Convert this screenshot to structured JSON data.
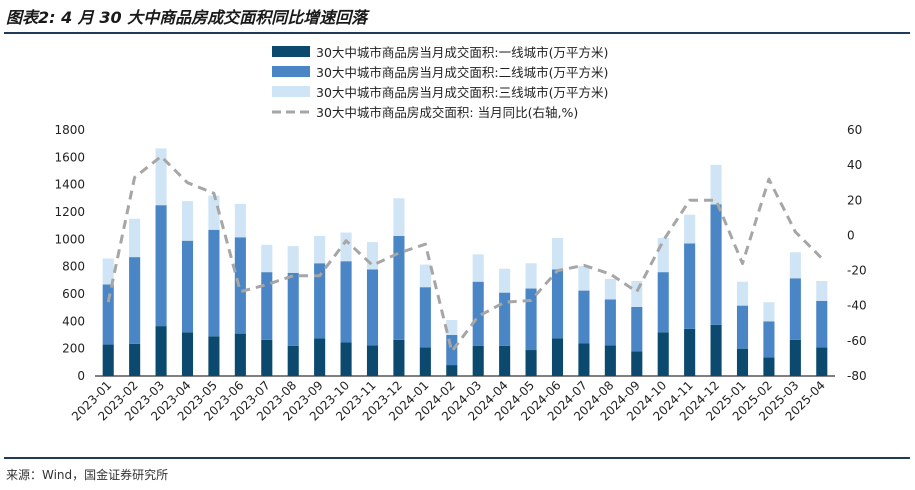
{
  "title": "图表2: 4 月 30 大中商品房成交面积同比增速回落",
  "source": "来源：Wind，国金证券研究所",
  "colors": {
    "tier1": "#0b4a6e",
    "tier2": "#4a86c5",
    "tier3": "#cfe4f4",
    "yoy": "#a6a6a6",
    "rule": "#1f3b57"
  },
  "chart_data": {
    "type": "bar",
    "stacked": true,
    "categories": [
      "2023-01",
      "2023-02",
      "2023-03",
      "2023-04",
      "2023-05",
      "2023-06",
      "2023-07",
      "2023-08",
      "2023-09",
      "2023-10",
      "2023-11",
      "2023-12",
      "2024-01",
      "2024-02",
      "2024-03",
      "2024-04",
      "2024-05",
      "2024-06",
      "2024-07",
      "2024-08",
      "2024-09",
      "2024-10",
      "2024-11",
      "2024-12",
      "2025-01",
      "2025-02",
      "2025-03",
      "2025-04"
    ],
    "series": [
      {
        "name": "30大中城市商品房当月成交面积:一线城市(万平方米)",
        "axis": "left",
        "values": [
          230,
          235,
          365,
          320,
          290,
          310,
          265,
          220,
          275,
          245,
          225,
          265,
          210,
          80,
          220,
          220,
          190,
          275,
          240,
          225,
          180,
          320,
          345,
          375,
          200,
          135,
          265,
          210
        ]
      },
      {
        "name": "30大中城市商品房当月成交面积:二线城市(万平方米)",
        "axis": "left",
        "values": [
          440,
          635,
          885,
          670,
          780,
          705,
          495,
          535,
          550,
          595,
          555,
          760,
          440,
          220,
          470,
          390,
          450,
          505,
          385,
          335,
          325,
          440,
          625,
          880,
          315,
          265,
          450,
          340
        ]
      },
      {
        "name": "30大中城市商品房当月成交面积:三线城市(万平方米)",
        "axis": "left",
        "values": [
          190,
          280,
          415,
          290,
          250,
          245,
          200,
          195,
          200,
          210,
          200,
          275,
          165,
          110,
          200,
          175,
          185,
          230,
          180,
          150,
          190,
          250,
          210,
          290,
          175,
          140,
          190,
          145
        ]
      },
      {
        "name": "30大中城市商品房成交面积: 当月同比(右轴,%)",
        "axis": "right",
        "type": "line",
        "values": [
          -38,
          33,
          45,
          30,
          24,
          -32,
          -28,
          -23,
          -23,
          -3,
          -17,
          -10,
          -5,
          -66,
          -46,
          -38,
          -37,
          -20,
          -17,
          -22,
          -32,
          -3,
          20,
          20,
          -16,
          32,
          2,
          -13
        ]
      }
    ],
    "ylim": [
      0,
      1800
    ],
    "yticks": [
      0,
      200,
      400,
      600,
      800,
      1000,
      1200,
      1400,
      1600,
      1800
    ],
    "y2lim": [
      -80,
      60
    ],
    "y2ticks": [
      -80,
      -60,
      -40,
      -20,
      0,
      20,
      40,
      60
    ],
    "legend_position": "top-center"
  }
}
